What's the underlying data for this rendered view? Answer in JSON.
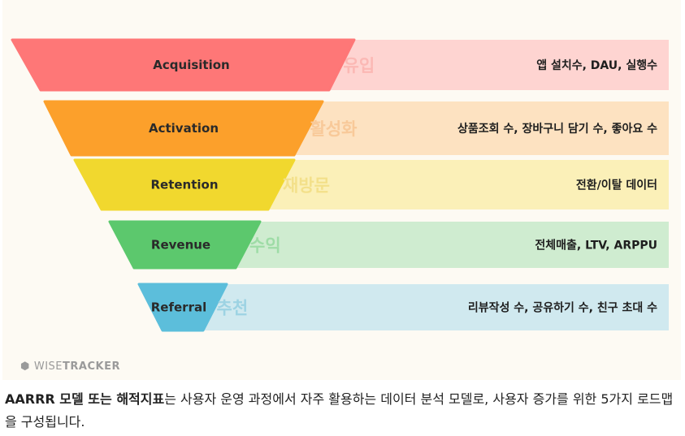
{
  "funnel": [
    {
      "stage": "Acquisition",
      "korean": "유입",
      "metrics": "앱 설치수, DAU, 실행수",
      "color": "#fe7777",
      "band": "#fed4d1",
      "kr_color": "#fbb8b4"
    },
    {
      "stage": "Activation",
      "korean": "활성화",
      "metrics": "상품조회 수, 장바구니 담기 수, 좋아요 수",
      "color": "#fca02b",
      "band": "#fde2c1",
      "kr_color": "#f8c999"
    },
    {
      "stage": "Retention",
      "korean": "재방문",
      "metrics": "전환/이탈 데이터",
      "color": "#f1d82e",
      "band": "#fbf0b8",
      "kr_color": "#f3e08a"
    },
    {
      "stage": "Revenue",
      "korean": "수익",
      "metrics": "전체매출, LTV, ARPPU",
      "color": "#5cc86d",
      "band": "#cfecd0",
      "kr_color": "#9edca6"
    },
    {
      "stage": "Referral",
      "korean": "추천",
      "metrics": "리뷰작성 수, 공유하기 수, 친구 초대 수",
      "color": "#5cbedb",
      "band": "#d0e9ef",
      "kr_color": "#9dd3e3"
    }
  ],
  "logo": {
    "light": "WISE",
    "bold": "TRACKER"
  },
  "caption": {
    "bold": "AARRR 모델 또는 해적지표",
    "rest": "는 사용자 운영 과정에서 자주 활용하는 데이터 분석 모델로, 사용자 증가를 위한 5가지 로드맵을 구성됩니다."
  }
}
